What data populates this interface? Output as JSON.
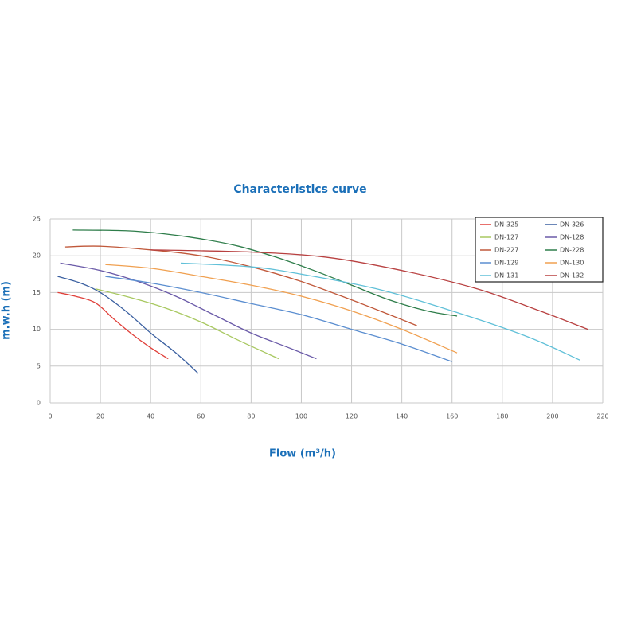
{
  "chart_data": {
    "type": "line",
    "title": "Characteristics curve",
    "x_label": "Flow (m³/h)",
    "y_label": "m.w.h (m)",
    "xlim": [
      0,
      220
    ],
    "ylim": [
      0,
      25
    ],
    "xticks": [
      0,
      20,
      40,
      60,
      80,
      100,
      120,
      140,
      160,
      180,
      200,
      220
    ],
    "yticks": [
      0,
      5,
      10,
      15,
      20,
      25
    ],
    "grid": true,
    "series": [
      {
        "name": "DN-325",
        "color": "#e0403a",
        "x": [
          3,
          10,
          18,
          25,
          32,
          40,
          47
        ],
        "values": [
          15,
          14.5,
          13.6,
          11.5,
          9.5,
          7.5,
          6
        ]
      },
      {
        "name": "DN-326",
        "color": "#3a5fa0",
        "x": [
          3,
          12,
          20,
          30,
          40,
          50,
          59
        ],
        "values": [
          17.2,
          16.3,
          15,
          12.5,
          9.5,
          6.8,
          4
        ]
      },
      {
        "name": "DN-127",
        "color": "#a8c860",
        "x": [
          18,
          30,
          45,
          60,
          75,
          91
        ],
        "values": [
          15.5,
          14.5,
          13,
          11,
          8.5,
          6
        ]
      },
      {
        "name": "DN-128",
        "color": "#6a5aa8",
        "x": [
          4,
          20,
          35,
          50,
          65,
          80,
          95,
          106
        ],
        "values": [
          19,
          18,
          16.5,
          14.5,
          12,
          9.5,
          7.5,
          6
        ]
      },
      {
        "name": "DN-227",
        "color": "#c0583a",
        "x": [
          6,
          20,
          40,
          60,
          80,
          100,
          120,
          135,
          146
        ],
        "values": [
          21.2,
          21.3,
          20.8,
          20,
          18.5,
          16.5,
          14,
          12,
          10.5
        ]
      },
      {
        "name": "DN-228",
        "color": "#2e7d4a",
        "x": [
          9,
          30,
          45,
          60,
          75,
          90,
          105,
          120,
          135,
          150,
          162
        ],
        "values": [
          23.5,
          23.4,
          23,
          22.3,
          21.3,
          19.8,
          18,
          16,
          14,
          12.5,
          11.8
        ]
      },
      {
        "name": "DN-129",
        "color": "#5b8ed0",
        "x": [
          22,
          40,
          60,
          80,
          100,
          120,
          140,
          160
        ],
        "values": [
          17.2,
          16.3,
          15,
          13.5,
          12,
          10,
          8,
          5.6
        ]
      },
      {
        "name": "DN-130",
        "color": "#f0a050",
        "x": [
          22,
          40,
          60,
          80,
          100,
          120,
          140,
          162
        ],
        "values": [
          18.8,
          18.3,
          17.2,
          16,
          14.5,
          12.5,
          10,
          6.8
        ]
      },
      {
        "name": "DN-131",
        "color": "#60c0d8",
        "x": [
          52,
          80,
          100,
          130,
          160,
          190,
          211
        ],
        "values": [
          19,
          18.5,
          17.5,
          15.5,
          12.5,
          9,
          5.8
        ]
      },
      {
        "name": "DN-132",
        "color": "#b84040",
        "x": [
          40,
          80,
          110,
          140,
          170,
          195,
          214
        ],
        "values": [
          20.8,
          20.5,
          19.8,
          18,
          15.5,
          12.5,
          10
        ]
      }
    ]
  }
}
